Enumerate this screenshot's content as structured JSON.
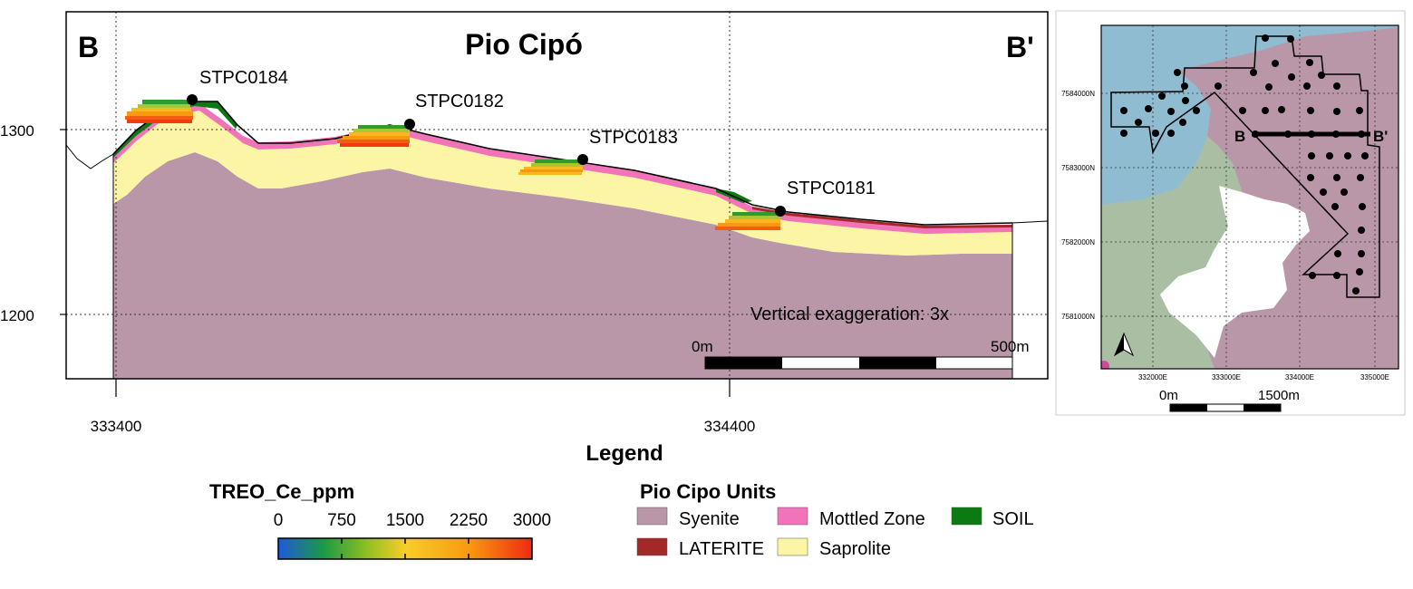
{
  "section": {
    "title": "Pio Cipó",
    "start_label": "B",
    "end_label": "B'",
    "elevation_ticks": [
      "1300",
      "1200"
    ],
    "easting_ticks": [
      "333400",
      "334400"
    ],
    "vertical_exaggeration": "Vertical exaggeration: 3x",
    "scalebar": {
      "start": "0m",
      "end": "500m"
    },
    "drillholes": [
      {
        "name": "STPC0184"
      },
      {
        "name": "STPC0182"
      },
      {
        "name": "STPC0183"
      },
      {
        "name": "STPC0181"
      }
    ]
  },
  "legend": {
    "title": "Legend",
    "colorbar": {
      "title": "TREO_Ce_ppm",
      "ticks": [
        "0",
        "750",
        "1500",
        "2250",
        "3000"
      ]
    },
    "units": {
      "title": "Pio Cipo Units",
      "items": [
        {
          "label": "Syenite",
          "color": "#b997a8"
        },
        {
          "label": "Mottled Zone",
          "color": "#f274b8"
        },
        {
          "label": "SOIL",
          "color": "#0b7a10"
        },
        {
          "label": "LATERITE",
          "color": "#a52828"
        },
        {
          "label": "Saprolite",
          "color": "#fdf5a6"
        }
      ]
    }
  },
  "inset": {
    "northings": [
      "7584000N",
      "7583000N",
      "7582000N",
      "7581000N"
    ],
    "eastings": [
      "332000E",
      "333000E",
      "334000E",
      "335000E"
    ],
    "section_start": "B",
    "section_end": "B'",
    "scalebar": {
      "start": "0m",
      "end": "1500m"
    },
    "colors": {
      "water": "#8fbcd0",
      "syenite": "#b997a8",
      "green": "#a9bea3",
      "white": "#ffffff"
    }
  }
}
